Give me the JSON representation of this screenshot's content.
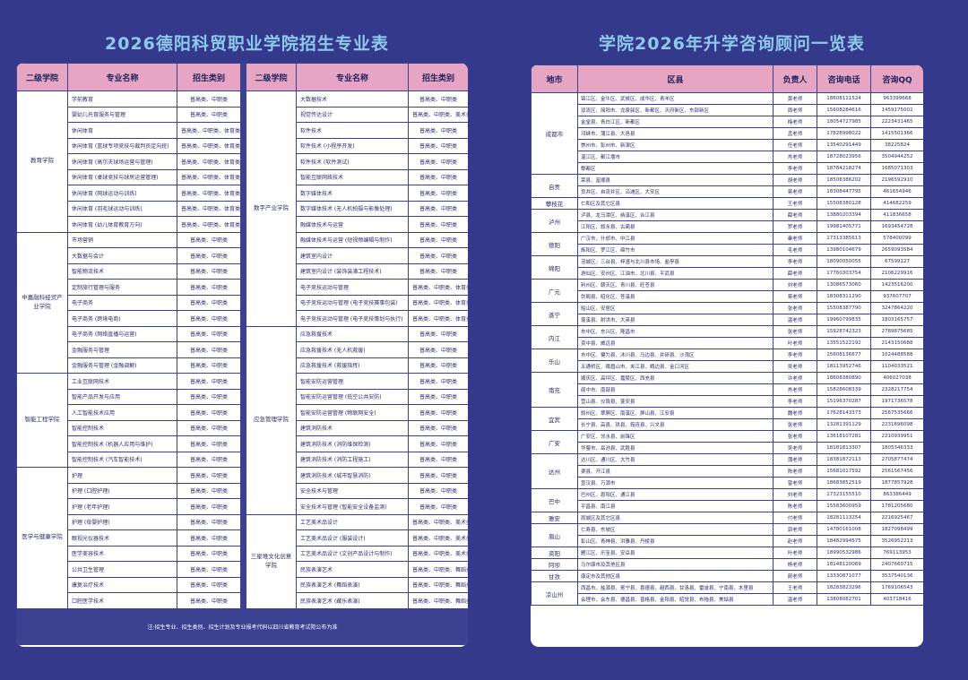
{
  "left": {
    "title": "2026德阳科贸职业学院招生专业表",
    "headers": [
      "二级学院",
      "专业名称",
      "招生类别"
    ],
    "groups": [
      {
        "college": "教育学院",
        "rows": [
          [
            "学前教育",
            "普高类、中职类"
          ],
          [
            "婴幼儿托育服务与管理",
            "普高类、中职类"
          ],
          [
            "休闲体育",
            "普高类、中职类、体育类"
          ],
          [
            "休闲体育 (篮球专项竞技与裁判员定向班)",
            "普高类、中职类、体育类"
          ],
          [
            "休闲体育 (高尔夫球场运营与管理)",
            "普高类、中职类、体育类"
          ],
          [
            "休闲体育 (桌球竞技与球房运营管理)",
            "普高类、中职类、体育类"
          ],
          [
            "休闲体育 (网球运动与训练)",
            "普高类、中职类、体育类"
          ],
          [
            "休闲体育 (羽毛球运动与训练)",
            "普高类、中职类、体育类"
          ],
          [
            "休闲体育 (幼儿体育教育方向)",
            "普高类、中职类、体育类"
          ]
        ]
      },
      {
        "college": "中嘉融科经贸产业学院",
        "rows": [
          [
            "市场营销",
            "普高类、中职类"
          ],
          [
            "大数据与会计",
            "普高类、中职类"
          ],
          [
            "智能物流技术",
            "普高类、中职类"
          ],
          [
            "定制旅行管理与服务",
            "普高类、中职类"
          ],
          [
            "电子商务",
            "普高类、中职类"
          ],
          [
            "电子商务 (跨境电商)",
            "普高类、中职类"
          ],
          [
            "电子商务 (网络直播与运营)",
            "普高类、中职类"
          ],
          [
            "金融服务与管理",
            "普高类、中职类"
          ],
          [
            "金融服务与管理 (金融调解)",
            "普高类、中职类"
          ]
        ]
      },
      {
        "college": "智能工程学院",
        "rows": [
          [
            "工业互联网技术",
            "普高类、中职类"
          ],
          [
            "智能产品开发与应用",
            "普高类、中职类"
          ],
          [
            "人工智能技术应用",
            "普高类、中职类"
          ],
          [
            "智能控制技术",
            "普高类、中职类"
          ],
          [
            "智能控制技术 (机器人应用与维护)",
            "普高类、中职类"
          ],
          [
            "智能控制技术 (汽车智能技术)",
            "普高类、中职类"
          ]
        ]
      },
      {
        "college": "医学与健康学院",
        "rows": [
          [
            "护理",
            "普高类、中职类"
          ],
          [
            "护理 (口腔护理)",
            "普高类、中职类"
          ],
          [
            "护理 (老年护理)",
            "普高类、中职类"
          ],
          [
            "护理 (母婴护理)",
            "普高类、中职类"
          ],
          [
            "眼视光仪器技术",
            "普高类、中职类"
          ],
          [
            "医学美容技术",
            "普高类、中职类"
          ],
          [
            "公共卫生管理",
            "普高类、中职类"
          ],
          [
            "康复治疗技术",
            "普高类、中职类"
          ],
          [
            "口腔医学技术",
            "普高类、中职类"
          ]
        ]
      }
    ],
    "groups2": [
      {
        "college": "数字产业学院",
        "rows": [
          [
            "大数据技术",
            "普高类、中职类"
          ],
          [
            "视觉传达设计",
            "普高类、中职类、美术类"
          ],
          [
            "软件技术",
            "普高类、中职类"
          ],
          [
            "软件技术 (小程序开发)",
            "普高类、中职类"
          ],
          [
            "软件技术 (软件测试)",
            "普高类、中职类"
          ],
          [
            "智能互联网络技术",
            "普高类、中职类"
          ],
          [
            "数字媒体技术",
            "普高类、中职类"
          ],
          [
            "数字媒体技术 (无人机拍摄与影像处理)",
            "普高类、中职类"
          ],
          [
            "融媒体技术与运营",
            "普高类、中职类"
          ],
          [
            "融媒体技术与运营 (短视频编辑与制作)",
            "普高类、中职类"
          ],
          [
            "建筑室内设计",
            "普高类、中职类"
          ],
          [
            "建筑室内设计 (装饰装潢工程技术)",
            "普高类、中职类"
          ],
          [
            "电子竞技运动与管理",
            "普高类、中职类、体育类"
          ],
          [
            "电子竞技运动与管理 (电子竞技赛事包装)",
            "普高类、中职类、体育类"
          ],
          [
            "电子竞技运动与管理 (电子竞技策划与执行)",
            "普高类、中职类、体育类"
          ]
        ]
      },
      {
        "college": "应急管理学院",
        "rows": [
          [
            "应急救援技术",
            "普高类、中职类"
          ],
          [
            "应急救援技术 (无人机救援)",
            "普高类、中职类"
          ],
          [
            "应急救援技术 (救援指挥)",
            "普高类、中职类"
          ],
          [
            "智能安防运营管理",
            "普高类、中职类"
          ],
          [
            "智能安防运营管理 (低空公共安防)",
            "普高类、中职类"
          ],
          [
            "智能安防运营管理 (物联网安全)",
            "普高类、中职类"
          ],
          [
            "建筑消防技术",
            "普高类、中职类"
          ],
          [
            "建筑消防技术 (消防维保检测)",
            "普高类、中职类"
          ],
          [
            "建筑消防技术 (消防工程施工)",
            "普高类、中职类"
          ],
          [
            "建筑消防技术 (城市智慧消防)",
            "普高类、中职类"
          ],
          [
            "安全技术与管理",
            "普高类、中职类"
          ],
          [
            "安全技术与管理 (智能安全设备监测)",
            "普高类、中职类"
          ]
        ]
      },
      {
        "college": "三星堆文化创意学院",
        "rows": [
          [
            "工艺美术品设计",
            "普高类、中职类、美术类"
          ],
          [
            "工艺美术品设计 (服装设计)",
            "普高类、中职类、美术类"
          ],
          [
            "工艺美术品设计 (文创产品设计与制作)",
            "普高类、中职类、美术类"
          ],
          [
            "民族表演艺术",
            "普高类、中职类、舞蹈类"
          ],
          [
            "民族表演艺术 (舞蹈表演)",
            "普高类、中职类、舞蹈类"
          ],
          [
            "民族表演艺术 (藏乐表演)",
            "普高类、中职类、舞蹈类"
          ]
        ]
      }
    ],
    "note": "注:招生专业、招生类别、招生计划及专业报考代码以四川省教育考试院公布为准"
  },
  "right": {
    "title": "学院2026年升学咨询顾问一览表",
    "headers": [
      "地市",
      "区县",
      "负责人",
      "咨询电话",
      "咨询QQ"
    ],
    "cities": [
      {
        "city": "成都市",
        "rows": [
          [
            "锦江区、金牛区、武侯区、成华区、青羊区",
            "黄老师",
            "18608111524",
            "963399668"
          ],
          [
            "双流区、简阳市、龙泉驿区、新都区、天府新区、东部新区",
            "周老师",
            "15608284616",
            "1459175002"
          ],
          [
            "金堂县、青白江区、新都区",
            "梅老师",
            "18054727985",
            "2223431465"
          ],
          [
            "邛崃市、蒲江县、大邑县",
            "孟老师",
            "17828998022",
            "1415501366"
          ],
          [
            "崇州市、彭州市、新津区",
            "任老师",
            "13540291449",
            "38225824"
          ],
          [
            "温江区、都江堰市",
            "肖老师",
            "18728023956",
            "3504944252"
          ],
          [
            "郫都区",
            "李老师",
            "18784218274",
            "1685071303"
          ]
        ]
      },
      {
        "city": "自贡",
        "rows": [
          [
            "荣县、富顺县",
            "胡老师",
            "18508386202",
            "2196592910"
          ],
          [
            "贡井区、自流井区、沿滩区、大安区",
            "蒋老师",
            "18308447795",
            "461654946"
          ]
        ]
      },
      {
        "city": "攀枝花",
        "rows": [
          [
            "仁和区及其它区县",
            "王老师",
            "15508380128",
            "414682259"
          ]
        ]
      },
      {
        "city": "泸州",
        "rows": [
          [
            "泸县、龙马潭区、纳溪区、合江县",
            "薛老师",
            "13880203394",
            "411836658"
          ],
          [
            "江阳区、叙永县、古蔺县",
            "罗老师",
            "19981405771",
            "1693454728"
          ]
        ]
      },
      {
        "city": "德阳",
        "rows": [
          [
            "广汉市、什邡市、中江县",
            "秦老师",
            "17313385613",
            "578400099"
          ],
          [
            "旌阳区、罗江区、绵竹市",
            "毛老师",
            "13980104679",
            "2659093584"
          ]
        ]
      },
      {
        "city": "绵阳",
        "rows": [
          [
            "涪城区、三台县、梓潼与北川县市场、盐亭县",
            "李老师",
            "18090050055",
            "67599127"
          ],
          [
            "游仙区、安州区、江油市、北川县、平武县",
            "薛老师",
            "17760303754",
            "2106229916"
          ]
        ]
      },
      {
        "city": "广元",
        "rows": [
          [
            "利州区、朝天区、青川县、旺苍县",
            "刘老师",
            "13086573060",
            "1423516200"
          ],
          [
            "剑阁县、昭化区、苍溪县",
            "蒋老师",
            "18308311290",
            "937607707"
          ]
        ]
      },
      {
        "city": "遂宁",
        "rows": [
          [
            "船山区、安居区",
            "张老师",
            "15508387790",
            "3247864220"
          ],
          [
            "蓬溪县、射洪市、大英县",
            "温老师",
            "19960799835",
            "1803165757"
          ]
        ]
      },
      {
        "city": "内江",
        "rows": [
          [
            "市中区、东兴区、隆昌市",
            "张老师",
            "15928742323",
            "2789875685"
          ],
          [
            "资中县、威远县",
            "叶老师",
            "13551522192",
            "2143150688"
          ]
        ]
      },
      {
        "city": "乐山",
        "rows": [
          [
            "市中区、犍为县、沐川县、马边县、井研县、沙湾区",
            "李老师",
            "15608136677",
            "1024488588"
          ],
          [
            "五通桥区、峨眉山市、夹江县、峨边县、金口河区",
            "吴老师",
            "18113952746",
            "1104033521"
          ]
        ]
      },
      {
        "city": "南充",
        "rows": [
          [
            "顺庆区、高坪区、嘉陵区、西充县",
            "许老师",
            "18608380890",
            "406027038"
          ],
          [
            "阆中市、南部县",
            "肖老师",
            "15828608339",
            "2328217754"
          ],
          [
            "营山县、仪陇县、蓬安县",
            "李老师",
            "15196370287",
            "1971736578"
          ]
        ]
      },
      {
        "city": "宜宾",
        "rows": [
          [
            "叙州区、翠屏区、南溪区、屏山县、江安县",
            "魏老师",
            "17628143373",
            "2567535666"
          ],
          [
            "长宁县、高县、珙县、筠连县、兴文县",
            "张老师",
            "13281391129",
            "2231696098"
          ]
        ]
      },
      {
        "city": "广安",
        "rows": [
          [
            "广安区、邻水县、前锋区",
            "张老师",
            "13618107281",
            "2210939951"
          ],
          [
            "华蓥市、岳池县、武胜县",
            "吴老师",
            "18181813307",
            "1805346333"
          ]
        ]
      },
      {
        "city": "达州",
        "rows": [
          [
            "达川区、通川区、大竹县",
            "蒲老师",
            "18381872113",
            "2705877474"
          ],
          [
            "渠县、开江县",
            "陈老师",
            "15681017592",
            "2561567456"
          ],
          [
            "宣汉县、万源市",
            "曾老师",
            "18683852519",
            "1877857928"
          ]
        ]
      },
      {
        "city": "巴中",
        "rows": [
          [
            "巴州区、恩阳区、通江县",
            "刘老师",
            "17323155510",
            "863386449"
          ],
          [
            "平昌县、南江县",
            "陈老师",
            "15583600959",
            "1781205680"
          ]
        ]
      },
      {
        "city": "雅安",
        "rows": [
          [
            "雨城区及其它区县",
            "付老师",
            "18281113254",
            "2216925467"
          ]
        ]
      },
      {
        "city": "眉山",
        "rows": [
          [
            "仁寿县、东坡区",
            "郭老师",
            "14780161008",
            "1827098499"
          ],
          [
            "彭山区、青神县、洪雅县、丹棱县",
            "赵老师",
            "18482994575",
            "3526952213"
          ]
        ]
      },
      {
        "city": "资阳",
        "rows": [
          [
            "雁江区、乐至县、安岳县",
            "叶老师",
            "18990532986",
            "769113953"
          ]
        ]
      },
      {
        "city": "阿坝",
        "rows": [
          [
            "马尔康市及其他区县",
            "杨老师",
            "18148120069",
            "2407660715"
          ]
        ]
      },
      {
        "city": "甘孜",
        "rows": [
          [
            "康定市及其他区县",
            "颜老师",
            "13330871077",
            "3537540136"
          ]
        ]
      },
      {
        "city": "凉山州",
        "rows": [
          [
            "西昌市、盐源县、冕宁县、喜德县、越西县、甘洛县、雷波县、宁南县、木里县",
            "王老师",
            "18283823296",
            "1769106543"
          ],
          [
            "会理市、会东县、德昌县、普格县、金阳县、昭觉县、布拖县、美姑县",
            "温老师",
            "13808082701",
            "403718416"
          ]
        ]
      }
    ]
  }
}
